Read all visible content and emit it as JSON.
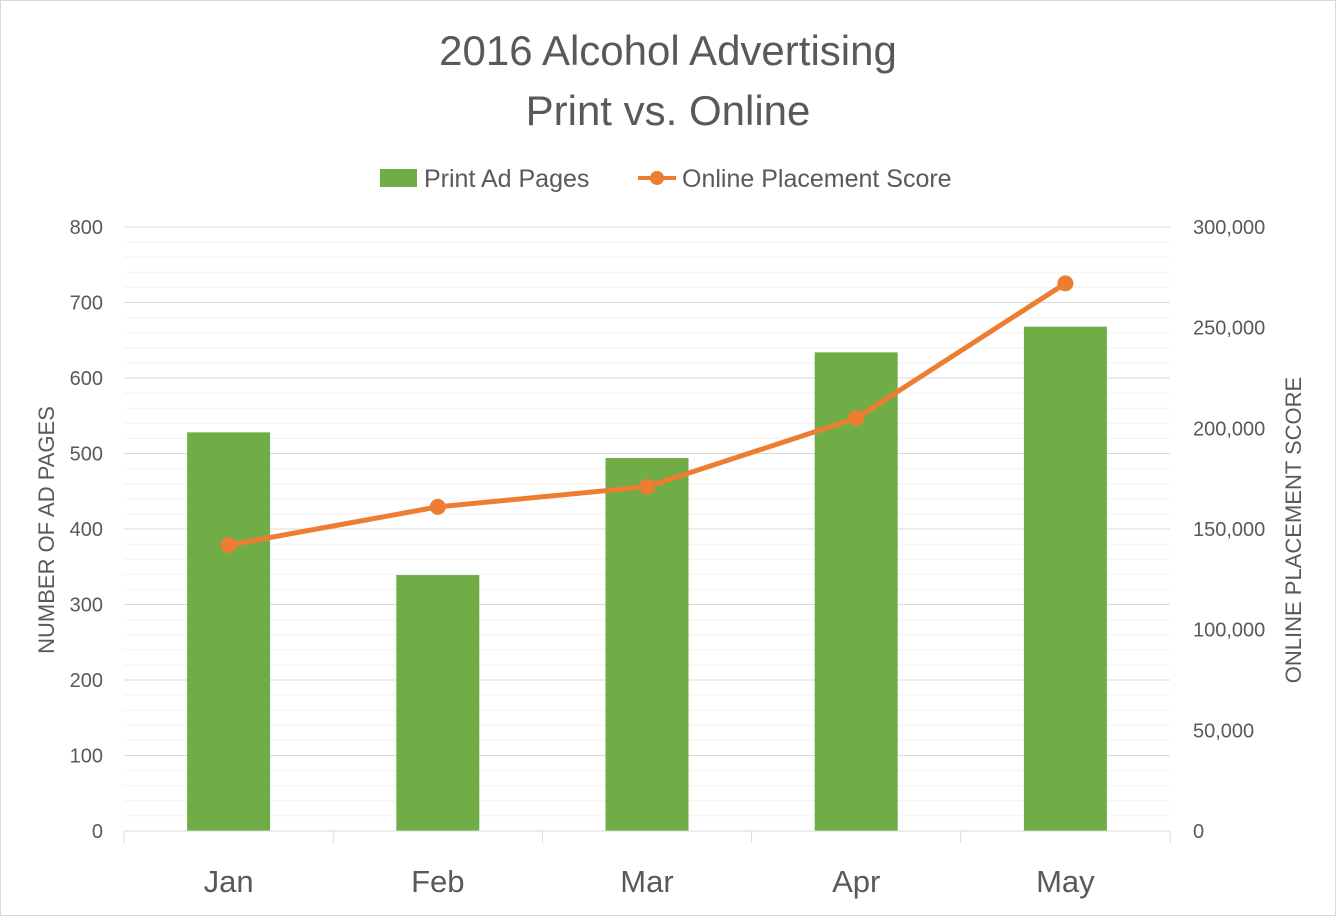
{
  "chart_data": {
    "type": "bar",
    "title": "2016 Alcohol Advertising",
    "subtitle": "Print vs. Online",
    "categories": [
      "Jan",
      "Feb",
      "Mar",
      "Apr",
      "May"
    ],
    "series": [
      {
        "name": "Print Ad Pages",
        "type": "bar",
        "axis": "left",
        "color": "#70ad47",
        "values": [
          528,
          339,
          494,
          634,
          668
        ]
      },
      {
        "name": "Online Placement Score",
        "type": "line",
        "axis": "right",
        "color": "#ed7d31",
        "values": [
          142000,
          161000,
          171000,
          205000,
          272000
        ]
      }
    ],
    "ylabel": "NUMBER OF AD PAGES",
    "ylabel_right": "ONLINE PLACEMENT SCORE",
    "ylim": [
      0,
      800
    ],
    "ylim_right": [
      0,
      300000
    ],
    "yticks": [
      "0",
      "100",
      "200",
      "300",
      "400",
      "500",
      "600",
      "700",
      "800"
    ],
    "yticks_right": [
      "0",
      "50,000",
      "100,000",
      "150,000",
      "200,000",
      "250,000",
      "300,000"
    ],
    "grid": true,
    "minor_grid": true,
    "legend_position": "top"
  }
}
